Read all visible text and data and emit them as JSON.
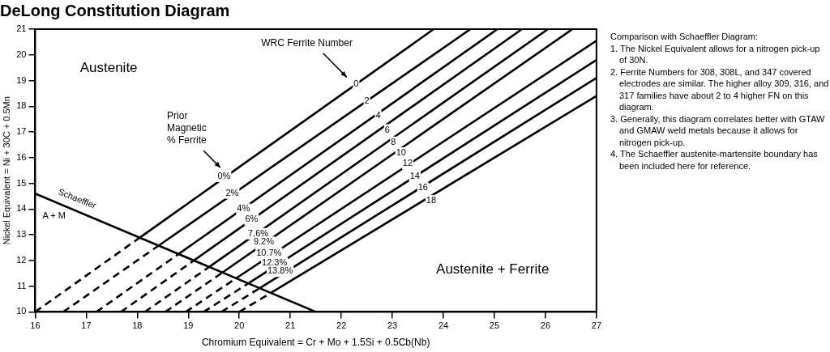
{
  "chart_data": {
    "type": "line",
    "title": "DeLong Constitution Diagram",
    "xlabel": "Chromium Equivalent = Cr + Mo + 1.5Si + 0.5Cb(Nb)",
    "ylabel": "Nickel Equivalent = Ni + 30C + 0.5Mn",
    "xlim": [
      16,
      27
    ],
    "ylim": [
      10,
      21
    ],
    "xticks": [
      16,
      17,
      18,
      19,
      20,
      21,
      22,
      23,
      24,
      25,
      26,
      27
    ],
    "yticks": [
      10,
      11,
      12,
      13,
      14,
      15,
      16,
      17,
      18,
      19,
      20,
      21
    ],
    "grid": false,
    "legend": false,
    "marker": "none",
    "series": [
      {
        "type": "line",
        "color": "#000000",
        "line_style": "solid",
        "x": [
          16,
          21.5
        ],
        "values": [
          14.6,
          10
        ]
      },
      {
        "type": "line",
        "color": "#000000",
        "line_style": "dashed",
        "x": [
          16,
          18.05
        ],
        "values": [
          10,
          12.89
        ]
      },
      {
        "type": "line",
        "color": "#000000",
        "line_style": "solid",
        "x": [
          18.05,
          23.81
        ],
        "values": [
          12.89,
          21
        ]
      },
      {
        "type": "line",
        "color": "#000000",
        "line_style": "dashed",
        "x": [
          16.55,
          18.42
        ],
        "values": [
          10,
          12.58
        ]
      },
      {
        "type": "line",
        "color": "#000000",
        "line_style": "solid",
        "x": [
          18.42,
          24.53
        ],
        "values": [
          12.58,
          21
        ]
      },
      {
        "type": "line",
        "color": "#000000",
        "line_style": "dashed",
        "x": [
          17.2,
          18.81
        ],
        "values": [
          10,
          12.25
        ]
      },
      {
        "type": "line",
        "color": "#000000",
        "line_style": "solid",
        "x": [
          18.81,
          25.06
        ],
        "values": [
          12.25,
          21
        ]
      },
      {
        "type": "line",
        "color": "#000000",
        "line_style": "dashed",
        "x": [
          17.68,
          19.11
        ],
        "values": [
          10,
          12.0
        ]
      },
      {
        "type": "line",
        "color": "#000000",
        "line_style": "solid",
        "x": [
          19.11,
          25.54
        ],
        "values": [
          12.0,
          21
        ]
      },
      {
        "type": "line",
        "color": "#000000",
        "line_style": "dashed",
        "x": [
          18.15,
          19.41
        ],
        "values": [
          10,
          11.75
        ]
      },
      {
        "type": "line",
        "color": "#000000",
        "line_style": "solid",
        "x": [
          19.41,
          26.05
        ],
        "values": [
          11.75,
          21
        ]
      },
      {
        "type": "line",
        "color": "#000000",
        "line_style": "dashed",
        "x": [
          18.55,
          19.67
        ],
        "values": [
          10,
          11.53
        ]
      },
      {
        "type": "line",
        "color": "#000000",
        "line_style": "solid",
        "x": [
          19.67,
          26.53
        ],
        "values": [
          11.53,
          21
        ]
      },
      {
        "type": "line",
        "color": "#000000",
        "line_style": "dashed",
        "x": [
          18.95,
          19.94
        ],
        "values": [
          10,
          11.31
        ]
      },
      {
        "type": "line",
        "color": "#000000",
        "line_style": "solid",
        "x": [
          19.94,
          27
        ],
        "values": [
          11.31,
          20.55
        ]
      },
      {
        "type": "line",
        "color": "#000000",
        "line_style": "dashed",
        "x": [
          19.3,
          20.18
        ],
        "values": [
          10,
          11.11
        ]
      },
      {
        "type": "line",
        "color": "#000000",
        "line_style": "solid",
        "x": [
          20.18,
          27
        ],
        "values": [
          11.11,
          19.8
        ]
      },
      {
        "type": "line",
        "color": "#000000",
        "line_style": "dashed",
        "x": [
          19.65,
          20.4
        ],
        "values": [
          10,
          10.92
        ]
      },
      {
        "type": "line",
        "color": "#000000",
        "line_style": "solid",
        "x": [
          20.4,
          27
        ],
        "values": [
          10.92,
          19.1
        ]
      },
      {
        "type": "line",
        "color": "#000000",
        "line_style": "dashed",
        "x": [
          20.0,
          20.62
        ],
        "values": [
          10,
          10.74
        ]
      },
      {
        "type": "line",
        "color": "#000000",
        "line_style": "solid",
        "x": [
          20.62,
          27
        ],
        "values": [
          10.74,
          18.4
        ]
      }
    ],
    "annotations": [
      "Austenite",
      "Austenite + Ferrite",
      "WRC Ferrite Number",
      "Prior\nMagnetic\n% Ferrite",
      "Schaeffler",
      {
        "text": "A + M",
        "x": 16.37,
        "y": 13.72
      },
      {
        "text": "0",
        "x": 22.29,
        "y": 18.86
      },
      {
        "text": "2",
        "x": 22.5,
        "y": 18.2
      },
      {
        "text": "4",
        "x": 22.72,
        "y": 17.63
      },
      {
        "text": "6",
        "x": 22.9,
        "y": 17.08
      },
      {
        "text": "8",
        "x": 23.02,
        "y": 16.6
      },
      {
        "text": "10",
        "x": 23.17,
        "y": 16.18
      },
      {
        "text": "12",
        "x": 23.3,
        "y": 15.76
      },
      {
        "text": "14",
        "x": 23.44,
        "y": 15.27
      },
      {
        "text": "16",
        "x": 23.6,
        "y": 14.82
      },
      {
        "text": "18",
        "x": 23.76,
        "y": 14.33
      },
      {
        "text": "0%",
        "x": 19.7,
        "y": 15.27
      },
      {
        "text": "2%",
        "x": 19.86,
        "y": 14.62
      },
      {
        "text": "4%",
        "x": 20.08,
        "y": 14.0
      },
      {
        "text": "6%",
        "x": 20.24,
        "y": 13.59
      },
      {
        "text": "7.6%",
        "x": 20.37,
        "y": 13.04
      },
      {
        "text": "9.2%",
        "x": 20.48,
        "y": 12.71
      },
      {
        "text": "10.7%",
        "x": 20.58,
        "y": 12.29
      },
      {
        "text": "12.3%",
        "x": 20.69,
        "y": 11.91
      },
      {
        "text": "13.8%",
        "x": 20.8,
        "y": 11.58
      },
      "Comparison with Schaeffler Diagram:",
      "1. The Nickel Equivalent allows for a nitrogen pick-up of 30N.",
      "2. Ferrite Numbers for 308, 308L, and 347 covered electrodes are similar. The higher alloy 309, 316, and 317 families have about 2 to 4 higher FN on this diagram.",
      "3. Generally, this diagram correlates better with GTAW and GMAW weld metals because it allows for nitrogen pick-up.",
      "4. The Schaeffler austenite-martensite boundary has been included here for reference."
    ]
  }
}
